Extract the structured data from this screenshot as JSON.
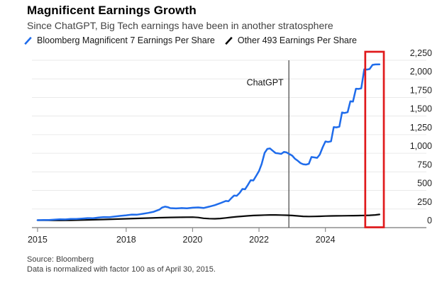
{
  "header": {
    "title": "Magnificent Earnings Growth",
    "subtitle": "Since ChatGPT, Big Tech earnings have been in another stratosphere"
  },
  "legend": {
    "items": [
      {
        "label": "Bloomberg Magnificent 7 Earnings Per Share",
        "color": "#1f6ceb"
      },
      {
        "label": "Other 493 Earnings Per Share",
        "color": "#0a0a0a"
      }
    ]
  },
  "footer": {
    "source": "Source: Bloomberg",
    "note": "Data is normalized with factor 100 as of April 30, 2015."
  },
  "chart_data": {
    "type": "line",
    "title": "Magnificent Earnings Growth",
    "subtitle": "Since ChatGPT, Big Tech earnings have been in another stratosphere",
    "xlabel": "",
    "ylabel": "",
    "ylim": [
      0,
      2250
    ],
    "grid": true,
    "y_axis_side": "right",
    "legend_position": "top",
    "colors": {
      "mag7_blue": "#1f6ceb",
      "other_black": "#0a0a0a",
      "highlight_red": "#e01a1c",
      "gridline": "#eaeaea",
      "axis": "#8e8e8e"
    },
    "y_ticks": [
      {
        "value": 0,
        "label": "0"
      },
      {
        "value": 250,
        "label": "250"
      },
      {
        "value": 500,
        "label": "500"
      },
      {
        "value": 750,
        "label": "750"
      },
      {
        "value": 1000,
        "label": "1,000"
      },
      {
        "value": 1250,
        "label": "1,250"
      },
      {
        "value": 1500,
        "label": "1,500"
      },
      {
        "value": 1750,
        "label": "1,750"
      },
      {
        "value": 2000,
        "label": "2,000"
      },
      {
        "value": 2250,
        "label": "2,250"
      }
    ],
    "x_ticks": [
      {
        "year": 2015.33,
        "label": "2015"
      },
      {
        "year": 2018,
        "label": "2018"
      },
      {
        "year": 2020,
        "label": "2020"
      },
      {
        "year": 2022,
        "label": "2022"
      },
      {
        "year": 2024,
        "label": "2024"
      }
    ],
    "annotation": {
      "vline_label": "ChatGPT",
      "vline_year": 2022.9
    },
    "highlight_box": {
      "year_start": 2025.2,
      "year_end": 2025.76,
      "color": "#e01a1c"
    },
    "series": [
      {
        "name": "Bloomberg Magnificent 7 Earnings Per Share",
        "color": "#1f6ceb",
        "points": [
          [
            2015.33,
            100
          ],
          [
            2015.5,
            103
          ],
          [
            2015.67,
            102
          ],
          [
            2015.83,
            107
          ],
          [
            2016.0,
            112
          ],
          [
            2016.17,
            111
          ],
          [
            2016.33,
            117
          ],
          [
            2016.5,
            116
          ],
          [
            2016.67,
            122
          ],
          [
            2016.83,
            128
          ],
          [
            2017.0,
            127
          ],
          [
            2017.17,
            135
          ],
          [
            2017.33,
            142
          ],
          [
            2017.5,
            141
          ],
          [
            2017.67,
            150
          ],
          [
            2017.83,
            158
          ],
          [
            2018.0,
            166
          ],
          [
            2018.17,
            175
          ],
          [
            2018.33,
            174
          ],
          [
            2018.5,
            186
          ],
          [
            2018.67,
            198
          ],
          [
            2018.83,
            214
          ],
          [
            2019.0,
            242
          ],
          [
            2019.08,
            270
          ],
          [
            2019.17,
            282
          ],
          [
            2019.25,
            276
          ],
          [
            2019.33,
            262
          ],
          [
            2019.5,
            258
          ],
          [
            2019.67,
            263
          ],
          [
            2019.83,
            260
          ],
          [
            2020.0,
            268
          ],
          [
            2020.17,
            272
          ],
          [
            2020.33,
            264
          ],
          [
            2020.5,
            282
          ],
          [
            2020.67,
            302
          ],
          [
            2020.83,
            328
          ],
          [
            2021.0,
            358
          ],
          [
            2021.08,
            355
          ],
          [
            2021.17,
            398
          ],
          [
            2021.25,
            432
          ],
          [
            2021.33,
            428
          ],
          [
            2021.42,
            468
          ],
          [
            2021.5,
            520
          ],
          [
            2021.58,
            516
          ],
          [
            2021.67,
            578
          ],
          [
            2021.75,
            638
          ],
          [
            2021.83,
            634
          ],
          [
            2021.92,
            700
          ],
          [
            2022.0,
            762
          ],
          [
            2022.08,
            855
          ],
          [
            2022.17,
            1005
          ],
          [
            2022.25,
            1058
          ],
          [
            2022.33,
            1065
          ],
          [
            2022.42,
            1032
          ],
          [
            2022.5,
            1002
          ],
          [
            2022.58,
            998
          ],
          [
            2022.67,
            992
          ],
          [
            2022.75,
            1018
          ],
          [
            2022.83,
            1012
          ],
          [
            2022.92,
            988
          ],
          [
            2023.0,
            968
          ],
          [
            2023.08,
            928
          ],
          [
            2023.17,
            898
          ],
          [
            2023.25,
            868
          ],
          [
            2023.33,
            852
          ],
          [
            2023.42,
            848
          ],
          [
            2023.5,
            858
          ],
          [
            2023.58,
            950
          ],
          [
            2023.67,
            944
          ],
          [
            2023.75,
            938
          ],
          [
            2023.83,
            982
          ],
          [
            2023.92,
            1082
          ],
          [
            2024.0,
            1158
          ],
          [
            2024.08,
            1152
          ],
          [
            2024.17,
            1160
          ],
          [
            2024.25,
            1352
          ],
          [
            2024.33,
            1348
          ],
          [
            2024.42,
            1358
          ],
          [
            2024.5,
            1548
          ],
          [
            2024.58,
            1542
          ],
          [
            2024.67,
            1552
          ],
          [
            2024.75,
            1698
          ],
          [
            2024.83,
            1694
          ],
          [
            2024.92,
            1868
          ],
          [
            2025.0,
            1865
          ],
          [
            2025.08,
            1872
          ],
          [
            2025.17,
            2128
          ],
          [
            2025.25,
            2125
          ],
          [
            2025.33,
            2132
          ],
          [
            2025.42,
            2188
          ],
          [
            2025.5,
            2194
          ],
          [
            2025.63,
            2195
          ]
        ]
      },
      {
        "name": "Other 493 Earnings Per Share",
        "color": "#0a0a0a",
        "points": [
          [
            2015.33,
            100
          ],
          [
            2015.67,
            98
          ],
          [
            2016.0,
            97
          ],
          [
            2016.33,
            99
          ],
          [
            2016.67,
            102
          ],
          [
            2017.0,
            106
          ],
          [
            2017.33,
            110
          ],
          [
            2017.67,
            114
          ],
          [
            2018.0,
            119
          ],
          [
            2018.33,
            124
          ],
          [
            2018.67,
            129
          ],
          [
            2019.0,
            133
          ],
          [
            2019.33,
            137
          ],
          [
            2019.67,
            139
          ],
          [
            2020.0,
            141
          ],
          [
            2020.17,
            136
          ],
          [
            2020.33,
            126
          ],
          [
            2020.5,
            121
          ],
          [
            2020.67,
            119
          ],
          [
            2020.83,
            123
          ],
          [
            2021.0,
            131
          ],
          [
            2021.17,
            139
          ],
          [
            2021.33,
            147
          ],
          [
            2021.5,
            153
          ],
          [
            2021.67,
            158
          ],
          [
            2021.83,
            163
          ],
          [
            2022.0,
            166
          ],
          [
            2022.17,
            169
          ],
          [
            2022.33,
            171
          ],
          [
            2022.5,
            171
          ],
          [
            2022.67,
            169
          ],
          [
            2022.83,
            167
          ],
          [
            2023.0,
            163
          ],
          [
            2023.17,
            157
          ],
          [
            2023.33,
            152
          ],
          [
            2023.5,
            150
          ],
          [
            2023.67,
            151
          ],
          [
            2023.83,
            153
          ],
          [
            2024.0,
            155
          ],
          [
            2024.17,
            157
          ],
          [
            2024.33,
            158
          ],
          [
            2024.5,
            159
          ],
          [
            2024.67,
            160
          ],
          [
            2024.83,
            161
          ],
          [
            2025.0,
            162
          ],
          [
            2025.17,
            164
          ],
          [
            2025.33,
            166
          ],
          [
            2025.5,
            171
          ],
          [
            2025.63,
            177
          ]
        ]
      }
    ]
  }
}
